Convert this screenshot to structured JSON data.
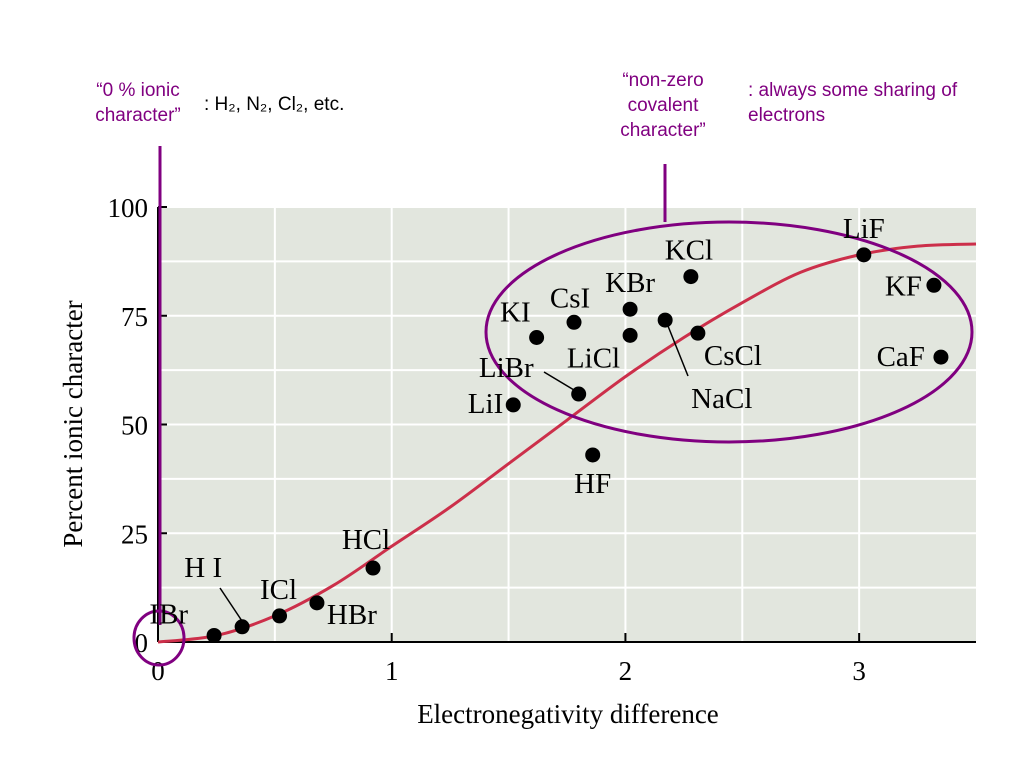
{
  "chart_data": {
    "type": "scatter",
    "xlabel": "Electronegativity difference",
    "ylabel": "Percent ionic character",
    "xlim": [
      0,
      3.5
    ],
    "ylim": [
      0,
      100
    ],
    "x_ticks": [
      "0",
      "1",
      "2",
      "3"
    ],
    "y_ticks": [
      "0",
      "25",
      "50",
      "75",
      "100"
    ],
    "grid": true,
    "points": [
      {
        "label": "IBr",
        "x": 0.24,
        "y": 1.5
      },
      {
        "label": "H I",
        "x": 0.36,
        "y": 3.5
      },
      {
        "label": "ICl",
        "x": 0.52,
        "y": 6
      },
      {
        "label": "HBr",
        "x": 0.68,
        "y": 9
      },
      {
        "label": "HCl",
        "x": 0.92,
        "y": 17
      },
      {
        "label": "LiI",
        "x": 1.52,
        "y": 54.5
      },
      {
        "label": "KI",
        "x": 1.62,
        "y": 70
      },
      {
        "label": "CsI",
        "x": 1.78,
        "y": 73.5
      },
      {
        "label": "LiBr",
        "x": 1.8,
        "y": 57
      },
      {
        "label": "HF",
        "x": 1.86,
        "y": 43
      },
      {
        "label": "KBr",
        "x": 2.02,
        "y": 76.5
      },
      {
        "label": "LiCl",
        "x": 2.02,
        "y": 70.5
      },
      {
        "label": "NaCl",
        "x": 2.17,
        "y": 74
      },
      {
        "label": "KCl",
        "x": 2.28,
        "y": 84
      },
      {
        "label": "CsCl",
        "x": 2.31,
        "y": 71
      },
      {
        "label": "LiF",
        "x": 3.02,
        "y": 89
      },
      {
        "label": "KF",
        "x": 3.32,
        "y": 82
      },
      {
        "label": "CaF",
        "x": 3.35,
        "y": 65.5
      }
    ],
    "curve": {
      "x": [
        0,
        0.25,
        0.5,
        0.75,
        1.0,
        1.25,
        1.5,
        1.75,
        2.0,
        2.25,
        2.5,
        2.75,
        3.0,
        3.25,
        3.5
      ],
      "y": [
        0,
        1.5,
        6,
        13,
        22,
        31,
        41,
        51,
        61,
        70,
        78,
        85,
        89,
        91,
        91.5
      ]
    }
  },
  "annotations": {
    "zero_ionic": "“0 % ionic character”",
    "zero_ionic_examples": ": H₂, N₂, Cl₂, etc.",
    "nonzero_covalent": "“non-zero covalent character”",
    "always_sharing": ": always some sharing of electrons"
  },
  "colors": {
    "accent": "#800080",
    "curve": "#cc2f4a",
    "plot_bg": "#e2e6de",
    "grid": "#ffffff"
  }
}
